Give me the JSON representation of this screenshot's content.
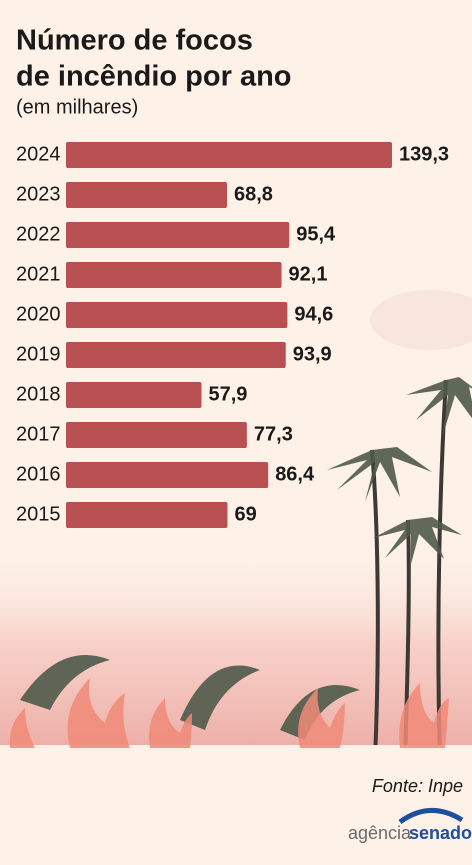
{
  "chart_data": {
    "type": "hbar",
    "title": [
      "Número de focos",
      "de incêndio por ano"
    ],
    "subtitle": "(em milhares)",
    "categories": [
      "2024",
      "2023",
      "2022",
      "2021",
      "2020",
      "2019",
      "2018",
      "2017",
      "2016",
      "2015"
    ],
    "values": [
      139.3,
      68.8,
      95.4,
      92.1,
      94.6,
      93.9,
      57.9,
      77.3,
      86.4,
      69
    ],
    "value_labels": [
      "139,3",
      "68,8",
      "95,4",
      "92,1",
      "94,6",
      "93,9",
      "57,9",
      "77,3",
      "86,4",
      "69"
    ],
    "color": "#b84f50",
    "source": "Fonte: Inpe",
    "logo": [
      "agência",
      "senado"
    ]
  }
}
